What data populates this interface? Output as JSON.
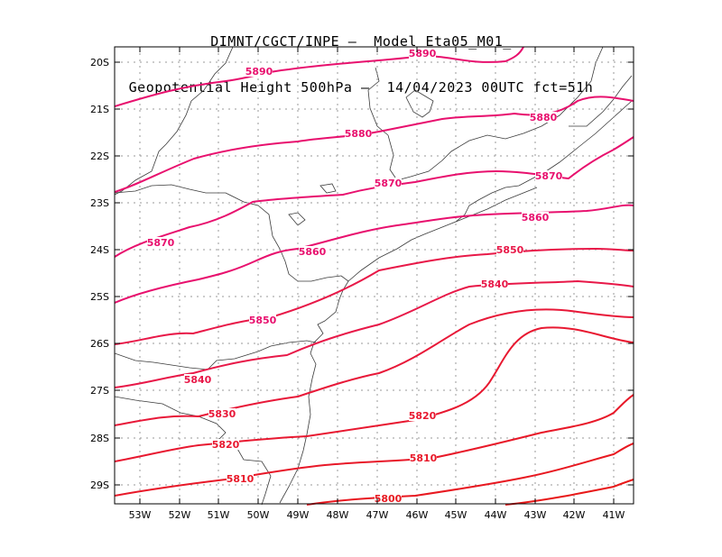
{
  "title": {
    "line1": "DIMNT/CGCT/INPE –  Model Eta05_M01_",
    "line2": "Geopotential Height 500hPa –  14/04/2023 00UTC fct=51h"
  },
  "axes": {
    "lat_labels": [
      "20S",
      "21S",
      "22S",
      "23S",
      "24S",
      "25S",
      "26S",
      "27S",
      "28S",
      "29S"
    ],
    "lon_labels": [
      "53W",
      "52W",
      "51W",
      "50W",
      "49W",
      "48W",
      "47W",
      "46W",
      "45W",
      "44W",
      "43W",
      "42W",
      "41W"
    ]
  },
  "contour_labels": [
    {
      "text": "5890",
      "color": "#e8106e"
    },
    {
      "text": "5890",
      "color": "#e8106e"
    },
    {
      "text": "5880",
      "color": "#e8106e"
    },
    {
      "text": "5880",
      "color": "#e8106e"
    },
    {
      "text": "5870",
      "color": "#e8106e"
    },
    {
      "text": "5870",
      "color": "#e8106e"
    },
    {
      "text": "5860",
      "color": "#e8106e"
    },
    {
      "text": "5860",
      "color": "#e8106e"
    },
    {
      "text": "5870",
      "color": "#e8106e"
    },
    {
      "text": "5850",
      "color": "#e8106e"
    },
    {
      "text": "5840",
      "color": "#e81848"
    },
    {
      "text": "5850",
      "color": "#e81848"
    },
    {
      "text": "5840",
      "color": "#e81848"
    },
    {
      "text": "5830",
      "color": "#e81838"
    },
    {
      "text": "5820",
      "color": "#e81830"
    },
    {
      "text": "5820",
      "color": "#e81830"
    },
    {
      "text": "5810",
      "color": "#e81828"
    },
    {
      "text": "5810",
      "color": "#e81828"
    },
    {
      "text": "5800",
      "color": "#e81820"
    }
  ],
  "colors": {
    "contour_high": "#e8106e",
    "contour_low": "#e81818",
    "coastline": "#3a3a3a",
    "grid": "#9a9a9a"
  }
}
